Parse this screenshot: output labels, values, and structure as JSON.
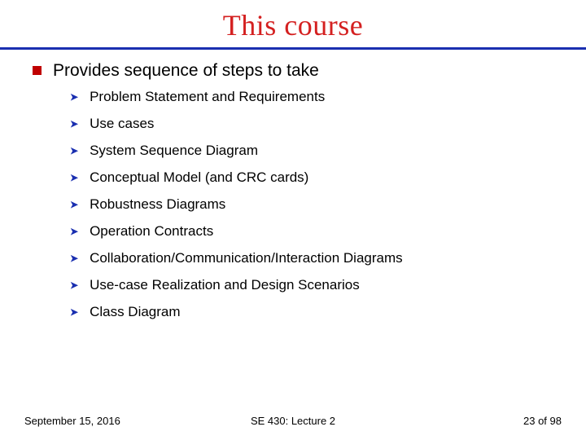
{
  "colors": {
    "title": "#d42020",
    "rule": "#1a2fb0",
    "square_bullet": "#c00000",
    "arrow_bullet": "#1a2fb0"
  },
  "title": "This course",
  "main_bullet": "Provides sequence of steps to take",
  "sub_items": [
    "Problem Statement and Requirements",
    "Use cases",
    "System Sequence Diagram",
    "Conceptual Model (and CRC cards)",
    "Robustness Diagrams",
    "Operation Contracts",
    "Collaboration/Communication/Interaction Diagrams",
    "Use-case Realization and Design Scenarios",
    "Class Diagram"
  ],
  "footer": {
    "date": "September 15, 2016",
    "course": "SE 430: Lecture 2",
    "page": "23 of 98"
  },
  "typography": {
    "title_fontsize": 36,
    "main_bullet_fontsize": 21,
    "sub_item_fontsize": 17,
    "footer_fontsize": 13
  }
}
